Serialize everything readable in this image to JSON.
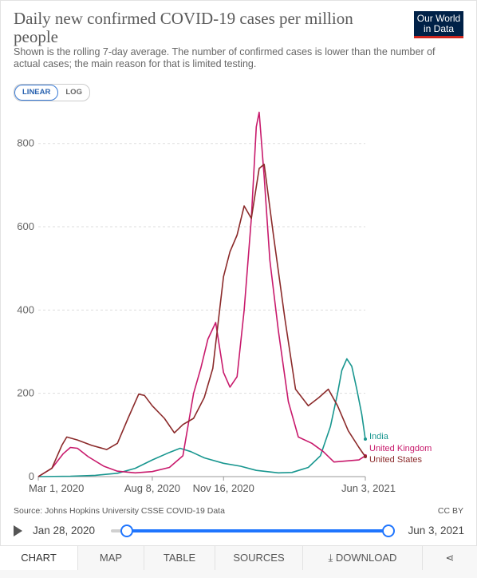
{
  "title": "Daily new confirmed COVID-19 cases per million people",
  "subtitle": "Shown is the rolling 7-day average. The number of confirmed cases is lower than the number of actual cases; the main reason for that is limited testing.",
  "logo": {
    "line1": "Our World",
    "line2": "in Data"
  },
  "scale_toggle": {
    "linear": "LINEAR",
    "log": "LOG",
    "active": "LINEAR"
  },
  "source": "Source: Johns Hopkins University CSSE COVID-19 Data",
  "license": "CC BY",
  "timeline": {
    "start": "Jan 28, 2020",
    "end": "Jun 3, 2021"
  },
  "tabs": {
    "chart": "CHART",
    "map": "MAP",
    "table": "TABLE",
    "sources": "SOURCES",
    "download": "DOWNLOAD"
  },
  "colors": {
    "india": "#18968f",
    "uk": "#c81a6c",
    "us": "#8b2a2a",
    "grid": "#dddddd",
    "accent": "#1f75fe"
  },
  "chart_data": {
    "type": "line",
    "x_start": "2020-03-01",
    "x_end": "2021-06-03",
    "x_tick_labels": [
      "Mar 1, 2020",
      "Aug 8, 2020",
      "Nov 16, 2020",
      "Jun 3, 2021"
    ],
    "x_tick_dates": [
      "2020-03-01",
      "2020-08-08",
      "2020-11-16",
      "2021-06-03"
    ],
    "ylim": [
      0,
      880
    ],
    "y_ticks": [
      0,
      200,
      400,
      600,
      800
    ],
    "grid": true,
    "series": [
      {
        "name": "India",
        "color": "#18968f",
        "points": [
          [
            "2020-03-01",
            0
          ],
          [
            "2020-04-15",
            1
          ],
          [
            "2020-05-20",
            3
          ],
          [
            "2020-06-20",
            8
          ],
          [
            "2020-07-15",
            20
          ],
          [
            "2020-08-08",
            40
          ],
          [
            "2020-09-01",
            58
          ],
          [
            "2020-09-16",
            68
          ],
          [
            "2020-10-01",
            60
          ],
          [
            "2020-10-20",
            45
          ],
          [
            "2020-11-16",
            32
          ],
          [
            "2020-12-10",
            25
          ],
          [
            "2021-01-01",
            15
          ],
          [
            "2021-02-01",
            9
          ],
          [
            "2021-02-20",
            10
          ],
          [
            "2021-03-15",
            22
          ],
          [
            "2021-04-01",
            50
          ],
          [
            "2021-04-15",
            120
          ],
          [
            "2021-04-25",
            200
          ],
          [
            "2021-05-01",
            255
          ],
          [
            "2021-05-08",
            283
          ],
          [
            "2021-05-15",
            265
          ],
          [
            "2021-05-22",
            210
          ],
          [
            "2021-05-29",
            150
          ],
          [
            "2021-06-03",
            90
          ]
        ]
      },
      {
        "name": "United Kingdom",
        "color": "#c81a6c",
        "points": [
          [
            "2020-03-01",
            0
          ],
          [
            "2020-03-20",
            20
          ],
          [
            "2020-04-05",
            55
          ],
          [
            "2020-04-15",
            70
          ],
          [
            "2020-04-25",
            68
          ],
          [
            "2020-05-10",
            48
          ],
          [
            "2020-06-01",
            25
          ],
          [
            "2020-06-20",
            13
          ],
          [
            "2020-07-15",
            9
          ],
          [
            "2020-08-08",
            12
          ],
          [
            "2020-09-01",
            22
          ],
          [
            "2020-09-20",
            50
          ],
          [
            "2020-10-05",
            200
          ],
          [
            "2020-10-15",
            260
          ],
          [
            "2020-10-25",
            330
          ],
          [
            "2020-11-05",
            370
          ],
          [
            "2020-11-16",
            250
          ],
          [
            "2020-11-25",
            215
          ],
          [
            "2020-12-05",
            240
          ],
          [
            "2020-12-15",
            400
          ],
          [
            "2020-12-25",
            620
          ],
          [
            "2021-01-01",
            840
          ],
          [
            "2021-01-05",
            875
          ],
          [
            "2021-01-12",
            720
          ],
          [
            "2021-01-20",
            520
          ],
          [
            "2021-02-01",
            350
          ],
          [
            "2021-02-15",
            180
          ],
          [
            "2021-03-01",
            95
          ],
          [
            "2021-03-20",
            80
          ],
          [
            "2021-04-05",
            60
          ],
          [
            "2021-04-20",
            35
          ],
          [
            "2021-05-10",
            38
          ],
          [
            "2021-05-25",
            40
          ],
          [
            "2021-06-03",
            50
          ]
        ]
      },
      {
        "name": "United States",
        "color": "#8b2a2a",
        "points": [
          [
            "2020-03-01",
            0
          ],
          [
            "2020-03-20",
            20
          ],
          [
            "2020-04-03",
            75
          ],
          [
            "2020-04-10",
            95
          ],
          [
            "2020-04-25",
            88
          ],
          [
            "2020-05-15",
            75
          ],
          [
            "2020-06-05",
            65
          ],
          [
            "2020-06-20",
            80
          ],
          [
            "2020-07-05",
            140
          ],
          [
            "2020-07-20",
            198
          ],
          [
            "2020-07-28",
            195
          ],
          [
            "2020-08-08",
            170
          ],
          [
            "2020-08-25",
            140
          ],
          [
            "2020-09-08",
            105
          ],
          [
            "2020-09-20",
            125
          ],
          [
            "2020-10-05",
            140
          ],
          [
            "2020-10-20",
            190
          ],
          [
            "2020-11-01",
            260
          ],
          [
            "2020-11-16",
            480
          ],
          [
            "2020-11-25",
            540
          ],
          [
            "2020-12-05",
            580
          ],
          [
            "2020-12-15",
            650
          ],
          [
            "2020-12-25",
            620
          ],
          [
            "2021-01-05",
            740
          ],
          [
            "2021-01-12",
            750
          ],
          [
            "2021-01-25",
            580
          ],
          [
            "2021-02-10",
            380
          ],
          [
            "2021-02-25",
            210
          ],
          [
            "2021-03-15",
            170
          ],
          [
            "2021-03-30",
            190
          ],
          [
            "2021-04-12",
            210
          ],
          [
            "2021-04-25",
            170
          ],
          [
            "2021-05-10",
            110
          ],
          [
            "2021-05-25",
            70
          ],
          [
            "2021-06-03",
            48
          ]
        ]
      }
    ]
  }
}
